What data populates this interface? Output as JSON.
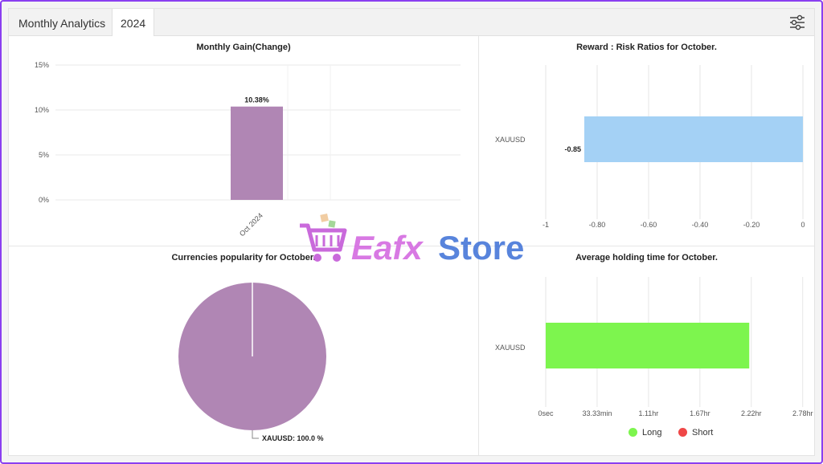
{
  "header": {
    "title": "Monthly Analytics",
    "year_tab": "2024",
    "filter_icon": "sliders-icon"
  },
  "watermark": {
    "brand_part1": "Eafx",
    "brand_part2": "Store",
    "icon": "shopping-cart-icon",
    "colors": {
      "cart": "#c45ad8",
      "eafx": "#d46be0",
      "store": "#3b6fd6"
    }
  },
  "colors": {
    "purple_bar": "#b086b4",
    "blue_bar": "#a4d1f5",
    "green_bar": "#7df54e",
    "long": "#7df54e",
    "short": "#ef4747",
    "frame": "#8a3ff0"
  },
  "charts": {
    "gain": {
      "title": "Monthly Gain(Change)"
    },
    "rr": {
      "title": "Reward : Risk Ratios for October."
    },
    "pie": {
      "title": "Currencies popularity for October."
    },
    "hold": {
      "title": "Average holding time for October.",
      "legend": [
        {
          "label": "Long",
          "color": "#7df54e"
        },
        {
          "label": "Short",
          "color": "#ef4747"
        }
      ]
    }
  },
  "chart_data": [
    {
      "type": "bar",
      "title": "Monthly Gain(Change)",
      "categories": [
        "Oct 2024"
      ],
      "values": [
        10.38
      ],
      "value_labels": [
        "10.38%"
      ],
      "yticks": [
        "15%",
        "10%",
        "5%",
        "0%"
      ],
      "ylim": [
        0,
        15
      ],
      "grid": true
    },
    {
      "type": "bar",
      "orientation": "horizontal",
      "title": "Reward : Risk Ratios for October.",
      "categories": [
        "XAUUSD"
      ],
      "values": [
        -0.85
      ],
      "value_labels": [
        "-0.85"
      ],
      "xticks": [
        "-1",
        "-0.80",
        "-0.60",
        "-0.40",
        "-0.20",
        "0"
      ],
      "xlim": [
        -1,
        0
      ],
      "grid": true
    },
    {
      "type": "pie",
      "title": "Currencies popularity for October.",
      "labels": [
        "XAUUSD"
      ],
      "values": [
        100.0
      ],
      "value_labels": [
        "XAUUSD: 100.0 %"
      ]
    },
    {
      "type": "bar",
      "orientation": "horizontal",
      "title": "Average holding time for October.",
      "categories": [
        "XAUUSD"
      ],
      "values_hours": [
        2.2
      ],
      "xticks": [
        "0sec",
        "33.33min",
        "1.11hr",
        "1.67hr",
        "2.22hr",
        "2.78hr"
      ],
      "xlim_hours": [
        0,
        2.78
      ],
      "grid": true,
      "legend": [
        "Long",
        "Short"
      ],
      "legend_placement": "bottom"
    }
  ]
}
